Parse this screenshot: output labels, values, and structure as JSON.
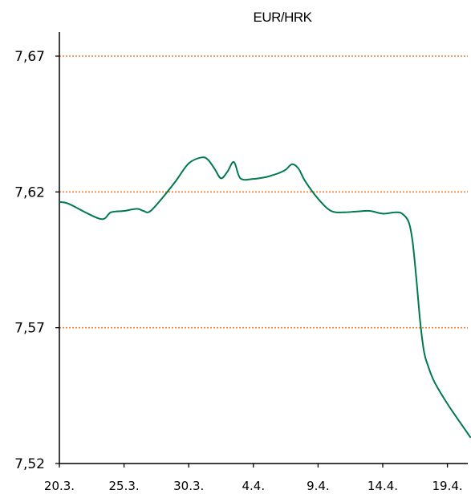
{
  "chart_data": {
    "type": "line",
    "title": "EUR/HRK",
    "xlabel": "",
    "ylabel": "",
    "ylim": [
      7.52,
      7.67
    ],
    "y_ticks": [
      "7,52",
      "7,57",
      "7,62",
      "7,67"
    ],
    "y_tick_values": [
      7.52,
      7.57,
      7.62,
      7.67
    ],
    "x_tick_labels": [
      "20.3.",
      "25.3.",
      "30.3.",
      "4.4.",
      "9.4.",
      "14.4.",
      "19.4."
    ],
    "grid": true,
    "grid_color": "#ED7D31",
    "line_color": "#007A4D",
    "legend": "none",
    "series": [
      {
        "x": [
          0,
          0.5,
          1,
          2,
          3,
          3.5,
          4,
          5,
          6,
          6.5,
          7,
          8,
          9,
          10,
          11,
          11.5,
          12,
          12.5,
          13,
          13.5,
          14,
          15,
          16,
          16.5,
          17,
          17.5,
          18,
          18.5,
          19,
          20,
          21,
          22,
          23,
          24,
          25,
          26,
          26.5,
          27,
          27.3,
          27.6,
          27.9,
          28.2,
          28.5,
          29,
          30,
          31,
          31.8
        ],
        "values": [
          7.6163,
          7.616,
          7.615,
          7.6125,
          7.6103,
          7.6102,
          7.6125,
          7.613,
          7.6138,
          7.613,
          7.6128,
          7.618,
          7.624,
          7.6305,
          7.6327,
          7.6318,
          7.6285,
          7.625,
          7.6275,
          7.631,
          7.625,
          7.6248,
          7.6255,
          7.6262,
          7.627,
          7.6282,
          7.6302,
          7.6285,
          7.624,
          7.6175,
          7.613,
          7.6125,
          7.6128,
          7.613,
          7.612,
          7.6125,
          7.612,
          7.609,
          7.602,
          7.588,
          7.572,
          7.561,
          7.556,
          7.55,
          7.542,
          7.535,
          7.5295
        ]
      }
    ]
  }
}
